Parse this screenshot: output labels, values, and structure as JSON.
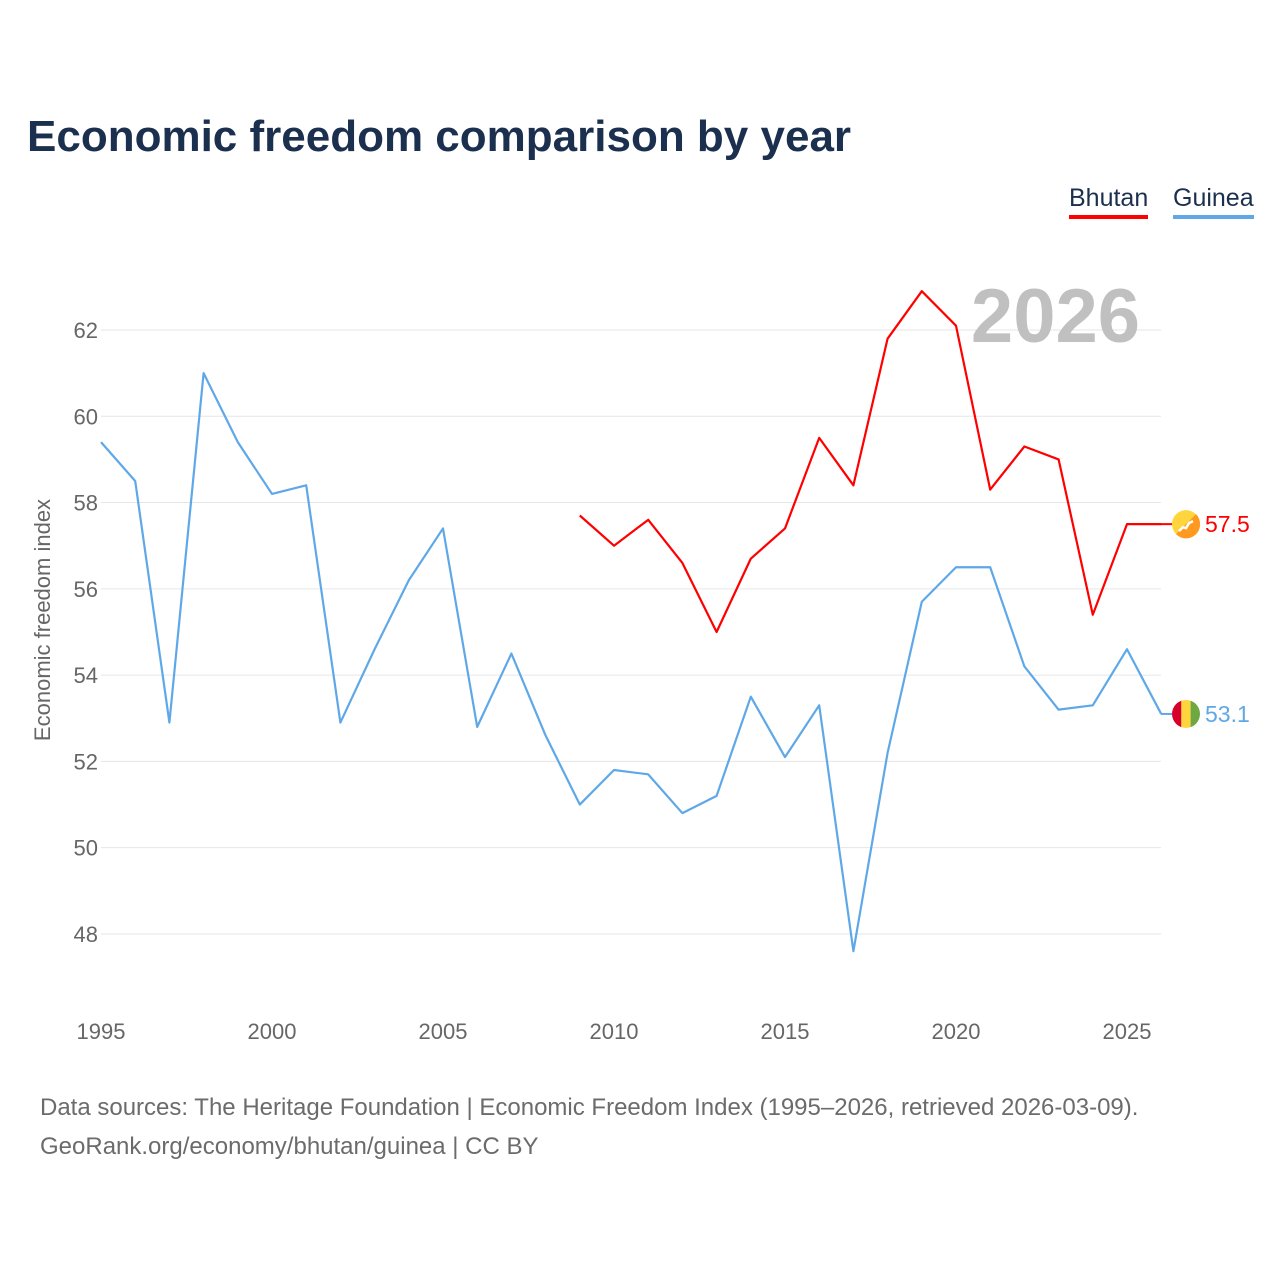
{
  "title": "Economic freedom comparison by year",
  "legend": [
    {
      "label": "Bhutan",
      "color": "#ff0000"
    },
    {
      "label": "Guinea",
      "color": "#5fa8e8"
    }
  ],
  "year_watermark": "2026",
  "sources": [
    "Data sources: The Heritage Foundation | Economic Freedom Index (1995–2026, retrieved 2026-03-09).",
    "GeoRank.org/economy/bhutan/guinea | CC BY"
  ],
  "chart_data": {
    "type": "line",
    "title": "Economic freedom comparison by year",
    "xlabel": "",
    "ylabel": "Economic freedom index",
    "xlim": [
      1995,
      2026
    ],
    "ylim": [
      47,
      63
    ],
    "grid": true,
    "legend_position": "top-right",
    "x_ticks": [
      "1995",
      "2000",
      "2005",
      "2010",
      "2015",
      "2020",
      "2025"
    ],
    "y_ticks": [
      "48",
      "50",
      "52",
      "54",
      "56",
      "58",
      "60",
      "62"
    ],
    "series": [
      {
        "name": "Bhutan",
        "color": "#ff0000",
        "end_label": "57.5",
        "start_year": 2009,
        "values": [
          57.7,
          57.0,
          57.6,
          56.6,
          55.0,
          56.7,
          57.4,
          59.5,
          58.4,
          61.8,
          62.9,
          62.1,
          58.3,
          59.3,
          59.0,
          55.4,
          57.5,
          57.5
        ]
      },
      {
        "name": "Guinea",
        "color": "#5fa8e8",
        "end_label": "53.1",
        "start_year": 1995,
        "values": [
          59.4,
          58.5,
          52.9,
          61.0,
          59.4,
          58.2,
          58.4,
          52.9,
          54.6,
          56.2,
          57.4,
          52.8,
          54.5,
          52.6,
          51.0,
          51.8,
          51.7,
          50.8,
          51.2,
          53.5,
          52.1,
          53.3,
          47.6,
          52.2,
          55.7,
          56.5,
          56.5,
          54.2,
          53.2,
          53.3,
          54.6,
          53.1
        ]
      }
    ]
  }
}
